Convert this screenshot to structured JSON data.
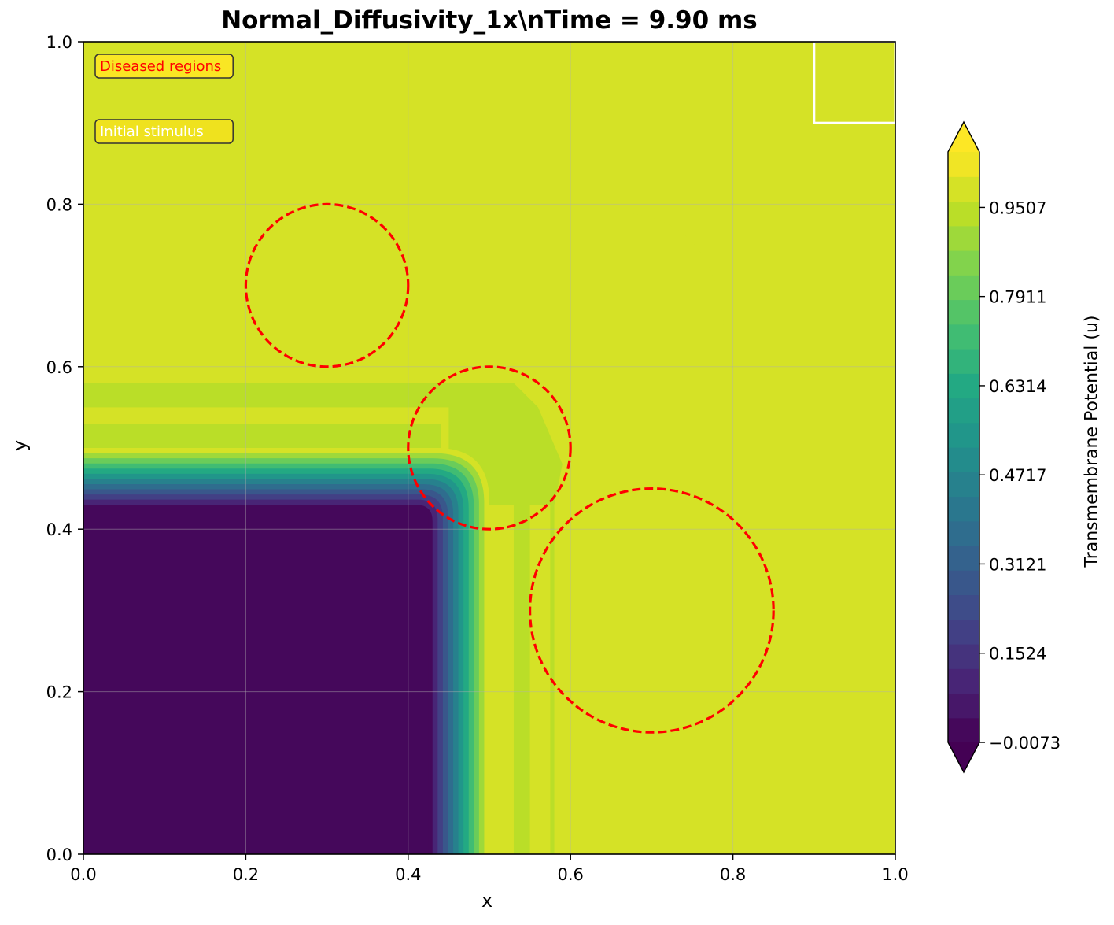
{
  "chart_data": {
    "type": "heatmap",
    "title": "Normal_Diffusivity_1x\\nTime = 9.90 ms",
    "xlabel": "x",
    "ylabel": "y",
    "xlim": [
      0.0,
      1.0
    ],
    "ylim": [
      0.0,
      1.0
    ],
    "x_ticks": [
      "0.0",
      "0.2",
      "0.4",
      "0.6",
      "0.8",
      "1.0"
    ],
    "y_ticks": [
      "0.0",
      "0.2",
      "0.4",
      "0.6",
      "0.8",
      "1.0"
    ],
    "grid": true,
    "colorbar": {
      "label": "Transmembrane Potential (u)",
      "colormap": "viridis",
      "vmin": -0.0073,
      "vmax": 1.05,
      "levels": 24,
      "extend": "both",
      "ticks": [
        -0.0073,
        0.1524,
        0.3121,
        0.4717,
        0.6314,
        0.7911,
        0.9507
      ],
      "tick_labels": [
        "−0.0073",
        "0.1524",
        "0.3121",
        "0.4717",
        "0.6314",
        "0.7911",
        "0.9507"
      ]
    },
    "field_description": {
      "resting_region": {
        "x": [
          0.0,
          0.43
        ],
        "y": [
          0.0,
          0.43
        ],
        "value": -0.0073
      },
      "wavefront_corner": [
        0.43,
        0.43
      ],
      "wavefront_width": 0.07,
      "plateau_value": 1.0,
      "upper_left_band": {
        "x": [
          0.0,
          0.79
        ],
        "y": [
          0.0,
          0.79
        ],
        "value": 0.99
      }
    },
    "diseased_regions": [
      {
        "cx": 0.3,
        "cy": 0.7,
        "r": 0.1
      },
      {
        "cx": 0.5,
        "cy": 0.5,
        "r": 0.1
      },
      {
        "cx": 0.7,
        "cy": 0.3,
        "r": 0.15
      }
    ],
    "stimulus_region": {
      "x": [
        0.9,
        1.0
      ],
      "y": [
        0.9,
        1.0
      ]
    },
    "legend": {
      "placement": "top-left",
      "entries": [
        {
          "label": "Diseased regions",
          "color": "#ff0000"
        },
        {
          "label": "Initial stimulus",
          "color": "#ffffff"
        }
      ]
    },
    "colors": {
      "diseased": "#ff0000",
      "stimulus": "#ffffff",
      "grid": "#b0b0b0"
    }
  }
}
